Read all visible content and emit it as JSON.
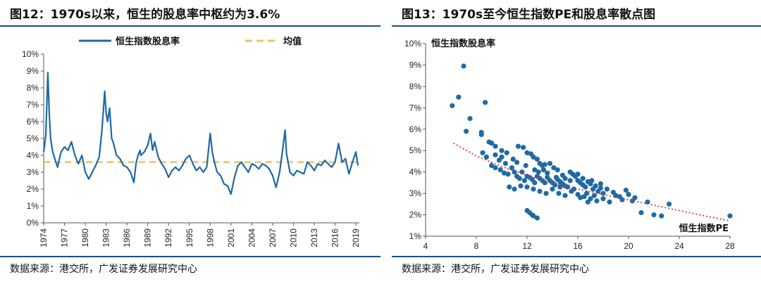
{
  "left": {
    "title": "图12：1970s以来，恒生的股息率中枢约为3.6%",
    "source": "数据来源：港交所，广发证券发展研究中心"
  },
  "right": {
    "title": "图13：1970s至今恒生指数PE和股息率散点图",
    "source": "数据来源：港交所，广发证券发展研究中心"
  },
  "chart_data": [
    {
      "type": "line",
      "title": "图12：1970s以来，恒生的股息率中枢约为3.6%",
      "xlabel": "",
      "ylabel": "",
      "x_tick_labels": [
        "1974",
        "1977",
        "1980",
        "1983",
        "1986",
        "1989",
        "1992",
        "1995",
        "1998",
        "2001",
        "2004",
        "2007",
        "2010",
        "2013",
        "2016",
        "2019"
      ],
      "y_tick_labels": [
        "0%",
        "1%",
        "2%",
        "3%",
        "4%",
        "5%",
        "6%",
        "7%",
        "8%",
        "9%",
        "10%"
      ],
      "xlim": [
        1974,
        2019.5
      ],
      "ylim": [
        0,
        10
      ],
      "legend": "top-center",
      "grid": false,
      "series": [
        {
          "name": "恒生指数股息率",
          "color": "#1f6aa5",
          "x": [
            1974,
            1974.3,
            1974.6,
            1974.8,
            1975,
            1975.3,
            1975.6,
            1976,
            1976.5,
            1977,
            1977.5,
            1978,
            1978.5,
            1979,
            1979.5,
            1980,
            1980.5,
            1981,
            1981.5,
            1982,
            1982.4,
            1982.8,
            1983,
            1983.2,
            1983.5,
            1983.8,
            1984,
            1984.5,
            1985,
            1985.5,
            1986,
            1986.5,
            1987,
            1987.3,
            1987.6,
            1987.9,
            1988,
            1988.5,
            1989,
            1989.4,
            1989.7,
            1990,
            1990.5,
            1991,
            1991.5,
            1992,
            1992.5,
            1993,
            1993.5,
            1994,
            1994.5,
            1995,
            1995.5,
            1996,
            1996.5,
            1997,
            1997.5,
            1998,
            1998.3,
            1998.6,
            1999,
            1999.5,
            2000,
            2000.5,
            2001,
            2001.5,
            2002,
            2002.5,
            2003,
            2003.5,
            2004,
            2004.5,
            2005,
            2005.5,
            2006,
            2006.5,
            2007,
            2007.5,
            2008,
            2008.4,
            2008.8,
            2009,
            2009.5,
            2010,
            2010.5,
            2011,
            2011.5,
            2012,
            2012.5,
            2013,
            2013.5,
            2014,
            2014.5,
            2015,
            2015.5,
            2016,
            2016.5,
            2017,
            2017.5,
            2018,
            2018.5,
            2019,
            2019.3
          ],
          "values": [
            4.2,
            5.2,
            8.9,
            6.5,
            5.0,
            4.2,
            3.8,
            3.3,
            4.2,
            4.5,
            4.3,
            4.8,
            4.0,
            3.5,
            4.0,
            3.0,
            2.6,
            3.0,
            3.4,
            3.9,
            5.5,
            7.8,
            6.5,
            6.0,
            6.8,
            5.0,
            4.8,
            4.0,
            3.8,
            3.4,
            3.3,
            3.0,
            2.4,
            3.5,
            4.0,
            4.3,
            4.0,
            4.2,
            4.6,
            5.3,
            4.3,
            4.8,
            3.9,
            3.5,
            3.2,
            2.7,
            3.1,
            3.3,
            3.1,
            3.4,
            3.8,
            4.0,
            3.5,
            3.1,
            3.3,
            3.0,
            3.3,
            5.3,
            4.2,
            3.6,
            3.0,
            2.8,
            2.3,
            2.2,
            1.7,
            2.7,
            3.4,
            3.6,
            3.3,
            3.0,
            3.5,
            3.4,
            3.2,
            3.5,
            3.4,
            3.2,
            2.8,
            2.1,
            3.0,
            4.2,
            5.5,
            4.1,
            3.0,
            2.8,
            3.1,
            3.0,
            2.9,
            3.6,
            3.4,
            3.1,
            3.5,
            3.4,
            3.7,
            3.5,
            3.3,
            3.6,
            4.7,
            3.6,
            3.8,
            2.9,
            3.6,
            4.2,
            3.4
          ]
        },
        {
          "name": "均值",
          "color": "#e8c46a",
          "x": [
            1974,
            2019.5
          ],
          "values": [
            3.6,
            3.6
          ]
        }
      ]
    },
    {
      "type": "scatter",
      "title": "图13：1970s至今恒生指数PE和股息率散点图",
      "xlabel": "恒生指数PE",
      "ylabel": "恒生指数股息率",
      "x_tick_labels": [
        "4",
        "8",
        "12",
        "16",
        "20",
        "24",
        "28"
      ],
      "y_tick_labels": [
        "1%",
        "2%",
        "3%",
        "4%",
        "5%",
        "6%",
        "7%",
        "8%",
        "9%",
        "10%"
      ],
      "xlim": [
        4,
        28
      ],
      "ylim": [
        1,
        10
      ],
      "grid": false,
      "color": "#1f6aa5",
      "trend_color": "#d33b3b",
      "trend": {
        "x": [
          6.2,
          8,
          10,
          12,
          14,
          16,
          18,
          20,
          22,
          24,
          26,
          28
        ],
        "y": [
          5.35,
          4.75,
          4.25,
          3.85,
          3.5,
          3.2,
          2.95,
          2.7,
          2.45,
          2.2,
          1.95,
          1.72
        ]
      },
      "points": [
        [
          6.1,
          7.1
        ],
        [
          6.6,
          7.5
        ],
        [
          7.0,
          8.95
        ],
        [
          8.7,
          7.25
        ],
        [
          7.2,
          5.9
        ],
        [
          7.5,
          6.5
        ],
        [
          8.4,
          5.85
        ],
        [
          8.4,
          5.75
        ],
        [
          9.0,
          5.4
        ],
        [
          9.2,
          5.35
        ],
        [
          9.5,
          5.2
        ],
        [
          10.0,
          5.0
        ],
        [
          10.4,
          4.9
        ],
        [
          8.5,
          4.9
        ],
        [
          8.8,
          4.7
        ],
        [
          9.5,
          4.8
        ],
        [
          10.0,
          4.7
        ],
        [
          11.3,
          5.2
        ],
        [
          11.7,
          5.15
        ],
        [
          12.0,
          4.9
        ],
        [
          12.3,
          4.85
        ],
        [
          12.5,
          4.7
        ],
        [
          12.8,
          4.6
        ],
        [
          13.0,
          4.4
        ],
        [
          13.2,
          4.3
        ],
        [
          13.4,
          4.35
        ],
        [
          13.8,
          4.4
        ],
        [
          14.1,
          4.2
        ],
        [
          14.4,
          4.1
        ],
        [
          9.2,
          4.3
        ],
        [
          9.5,
          4.2
        ],
        [
          9.9,
          4.1
        ],
        [
          10.2,
          3.95
        ],
        [
          10.5,
          3.9
        ],
        [
          10.8,
          4.2
        ],
        [
          11.0,
          4.0
        ],
        [
          11.2,
          3.8
        ],
        [
          11.4,
          3.7
        ],
        [
          11.6,
          4.0
        ],
        [
          11.8,
          3.6
        ],
        [
          12.0,
          3.8
        ],
        [
          12.2,
          3.75
        ],
        [
          12.4,
          3.65
        ],
        [
          12.6,
          3.5
        ],
        [
          12.8,
          3.8
        ],
        [
          13.0,
          3.7
        ],
        [
          13.2,
          3.6
        ],
        [
          13.4,
          3.5
        ],
        [
          13.6,
          3.75
        ],
        [
          13.8,
          3.6
        ],
        [
          14.0,
          3.5
        ],
        [
          14.2,
          3.4
        ],
        [
          14.4,
          3.65
        ],
        [
          14.6,
          3.55
        ],
        [
          14.8,
          3.45
        ],
        [
          15.0,
          3.7
        ],
        [
          15.2,
          3.3
        ],
        [
          15.4,
          3.6
        ],
        [
          15.6,
          3.9
        ],
        [
          15.8,
          3.8
        ],
        [
          16.0,
          3.6
        ],
        [
          16.2,
          3.5
        ],
        [
          16.4,
          3.4
        ],
        [
          16.6,
          3.3
        ],
        [
          16.8,
          3.55
        ],
        [
          17.0,
          3.45
        ],
        [
          17.2,
          3.2
        ],
        [
          17.4,
          3.35
        ],
        [
          17.6,
          3.1
        ],
        [
          17.8,
          3.25
        ],
        [
          18.0,
          3.0
        ],
        [
          10.6,
          3.3
        ],
        [
          11.0,
          3.2
        ],
        [
          11.5,
          3.35
        ],
        [
          12.0,
          3.3
        ],
        [
          12.5,
          3.2
        ],
        [
          13.0,
          3.1
        ],
        [
          13.5,
          3.0
        ],
        [
          14.0,
          3.2
        ],
        [
          14.5,
          3.0
        ],
        [
          15.0,
          2.9
        ],
        [
          15.5,
          3.1
        ],
        [
          16.0,
          2.95
        ],
        [
          16.5,
          2.85
        ],
        [
          17.0,
          2.75
        ],
        [
          17.5,
          2.65
        ],
        [
          18.0,
          2.75
        ],
        [
          18.5,
          2.6
        ],
        [
          12.0,
          2.2
        ],
        [
          12.2,
          2.1
        ],
        [
          12.5,
          1.95
        ],
        [
          12.8,
          1.85
        ],
        [
          12.4,
          2.0
        ],
        [
          16.8,
          2.6
        ],
        [
          19.0,
          2.9
        ],
        [
          19.5,
          2.7
        ],
        [
          20.0,
          2.95
        ],
        [
          20.5,
          2.8
        ],
        [
          21.0,
          2.1
        ],
        [
          21.5,
          2.6
        ],
        [
          22.0,
          2.0
        ],
        [
          22.6,
          1.95
        ],
        [
          23.2,
          2.5
        ],
        [
          16.2,
          2.8
        ],
        [
          17.3,
          2.9
        ],
        [
          18.3,
          3.2
        ],
        [
          19.8,
          3.15
        ],
        [
          14.8,
          3.85
        ],
        [
          15.4,
          4.0
        ],
        [
          16.0,
          3.9
        ],
        [
          14.3,
          3.75
        ],
        [
          11.9,
          4.3
        ],
        [
          12.6,
          4.1
        ],
        [
          13.6,
          3.95
        ],
        [
          14.6,
          3.3
        ],
        [
          15.7,
          3.2
        ],
        [
          16.7,
          3.0
        ],
        [
          11.2,
          4.45
        ],
        [
          10.9,
          4.6
        ],
        [
          12.9,
          4.0
        ],
        [
          15.0,
          3.35
        ],
        [
          17.8,
          3.45
        ],
        [
          18.8,
          3.05
        ],
        [
          19.3,
          2.85
        ],
        [
          20.3,
          2.65
        ],
        [
          13.3,
          4.1
        ],
        [
          16.4,
          3.7
        ],
        [
          17.1,
          3.6
        ],
        [
          9.8,
          4.55
        ],
        [
          10.3,
          4.4
        ],
        [
          28.0,
          1.95
        ]
      ]
    }
  ]
}
